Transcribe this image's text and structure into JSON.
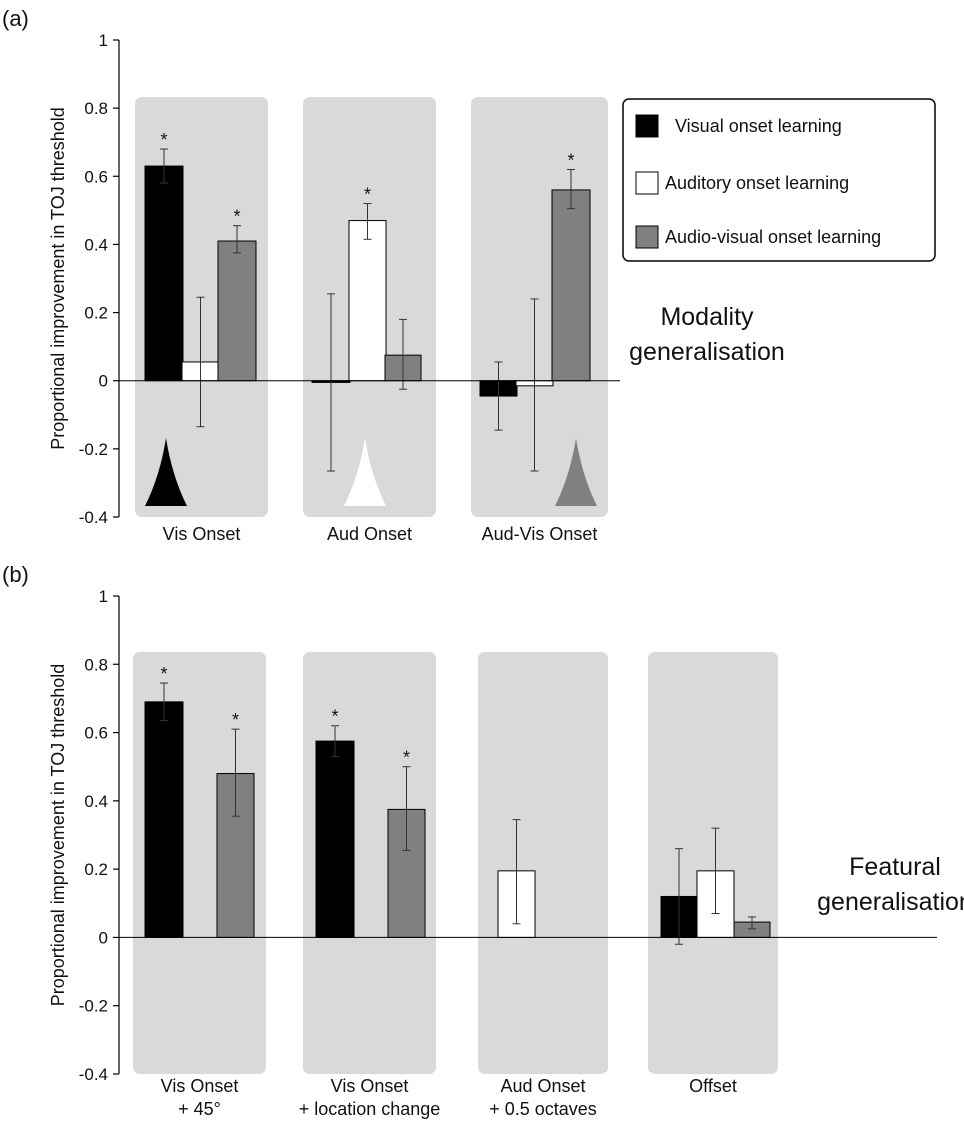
{
  "chart_data": [
    {
      "panel_label": "(a)",
      "type": "bar",
      "ylabel": "Proportional improvement in TOJ threshold",
      "ylim": [
        -0.4,
        1
      ],
      "yticks": [
        -0.4,
        -0.2,
        0,
        0.2,
        0.4,
        0.6,
        0.8,
        1
      ],
      "ytick_labels": [
        "-0.4",
        "-0.2",
        "0",
        "0.2",
        "0.4",
        "0.6",
        "0.8",
        "1"
      ],
      "side_label": [
        "Modality",
        "generalisation"
      ],
      "categories": [
        {
          "label": [
            "Vis Onset"
          ],
          "stimulus_marker": "black"
        },
        {
          "label": [
            "Aud Onset"
          ],
          "stimulus_marker": "white"
        },
        {
          "label": [
            "Aud-Vis Onset"
          ],
          "stimulus_marker": "gray"
        }
      ],
      "series": [
        {
          "name": "Visual onset learning",
          "color": "#000000",
          "values": [
            0.63,
            -0.005,
            -0.045
          ],
          "error_low": [
            0.58,
            -0.265,
            -0.145
          ],
          "error_high": [
            0.68,
            0.255,
            0.055
          ],
          "significant": [
            true,
            false,
            false
          ]
        },
        {
          "name": "Auditory onset learning",
          "color": "#ffffff",
          "values": [
            0.055,
            0.47,
            -0.015
          ],
          "error_low": [
            -0.135,
            0.415,
            -0.265
          ],
          "error_high": [
            0.245,
            0.52,
            0.24
          ],
          "significant": [
            false,
            true,
            false
          ]
        },
        {
          "name": "Audio-visual onset learning",
          "color": "#808080",
          "values": [
            0.41,
            0.075,
            0.56
          ],
          "error_low": [
            0.375,
            -0.025,
            0.505
          ],
          "error_high": [
            0.455,
            0.18,
            0.62
          ],
          "significant": [
            true,
            false,
            true
          ]
        }
      ],
      "significance_marker": "*",
      "legend": {
        "placement": "top-right"
      }
    },
    {
      "panel_label": "(b)",
      "type": "bar",
      "ylabel": "Proportional improvement in TOJ threshold",
      "ylim": [
        -0.4,
        1
      ],
      "yticks": [
        -0.4,
        -0.2,
        0,
        0.2,
        0.4,
        0.6,
        0.8,
        1
      ],
      "ytick_labels": [
        "-0.4",
        "-0.2",
        "0",
        "0.2",
        "0.4",
        "0.6",
        "0.8",
        "1"
      ],
      "side_label": [
        "Featural",
        "generalisation"
      ],
      "categories": [
        {
          "label": [
            "Vis Onset",
            "+ 45°"
          ]
        },
        {
          "label": [
            "Vis Onset",
            "+ location change"
          ]
        },
        {
          "label": [
            "Aud Onset",
            "+ 0.5 octaves"
          ]
        },
        {
          "label": [
            "Offset"
          ]
        }
      ],
      "series": [
        {
          "name": "Visual onset learning",
          "color": "#000000",
          "values": [
            0.69,
            0.575,
            null,
            0.12
          ],
          "error_low": [
            0.635,
            0.53,
            null,
            -0.02
          ],
          "error_high": [
            0.745,
            0.62,
            null,
            0.26
          ],
          "significant": [
            true,
            true,
            false,
            false
          ]
        },
        {
          "name": "Auditory onset learning",
          "color": "#ffffff",
          "values": [
            null,
            null,
            0.195,
            0.195
          ],
          "error_low": [
            null,
            null,
            0.04,
            0.07
          ],
          "error_high": [
            null,
            null,
            0.345,
            0.32
          ],
          "significant": [
            false,
            false,
            false,
            false
          ]
        },
        {
          "name": "Audio-visual onset learning",
          "color": "#808080",
          "values": [
            0.48,
            0.375,
            null,
            0.045
          ],
          "error_low": [
            0.355,
            0.255,
            null,
            0.025
          ],
          "error_high": [
            0.61,
            0.5,
            null,
            0.06
          ],
          "significant": [
            true,
            true,
            false,
            false
          ]
        }
      ],
      "significance_marker": "*"
    }
  ]
}
